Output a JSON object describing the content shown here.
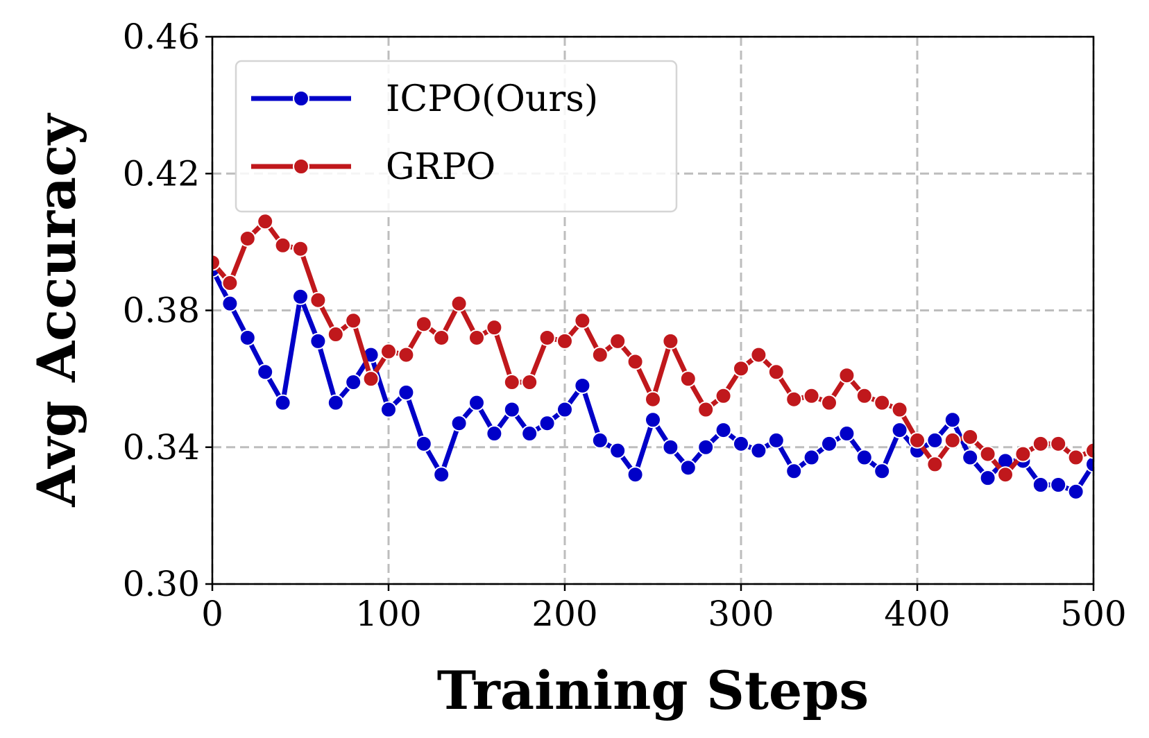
{
  "chart_data": {
    "type": "line",
    "xlabel": "Training Steps",
    "ylabel": "Avg Accuracy",
    "xlim": [
      0,
      500
    ],
    "ylim": [
      0.3,
      0.46
    ],
    "xticks": [
      0,
      100,
      200,
      300,
      400,
      500
    ],
    "xtick_labels": [
      "0",
      "100",
      "200",
      "300",
      "400",
      "500"
    ],
    "yticks": [
      0.3,
      0.34,
      0.38,
      0.42,
      0.46
    ],
    "ytick_labels": [
      "0.30",
      "0.34",
      "0.38",
      "0.42",
      "0.46"
    ],
    "grid": true,
    "legend_position": "top-left",
    "x": [
      0,
      10,
      20,
      30,
      40,
      50,
      60,
      70,
      80,
      90,
      100,
      110,
      120,
      130,
      140,
      150,
      160,
      170,
      180,
      190,
      200,
      210,
      220,
      230,
      240,
      250,
      260,
      270,
      280,
      290,
      300,
      310,
      320,
      330,
      340,
      350,
      360,
      370,
      380,
      390,
      400,
      410,
      420,
      430,
      440,
      450,
      460,
      470,
      480,
      490,
      500
    ],
    "series": [
      {
        "name": "ICPO(Ours)",
        "color": "#0000c8",
        "values": [
          0.392,
          0.382,
          0.372,
          0.362,
          0.353,
          0.384,
          0.371,
          0.353,
          0.359,
          0.367,
          0.351,
          0.356,
          0.341,
          0.332,
          0.347,
          0.353,
          0.344,
          0.351,
          0.344,
          0.347,
          0.351,
          0.358,
          0.342,
          0.339,
          0.332,
          0.348,
          0.34,
          0.334,
          0.34,
          0.345,
          0.341,
          0.339,
          0.342,
          0.333,
          0.337,
          0.341,
          0.344,
          0.337,
          0.333,
          0.345,
          0.339,
          0.342,
          0.348,
          0.337,
          0.331,
          0.336,
          0.336,
          0.329,
          0.329,
          0.327,
          0.335
        ]
      },
      {
        "name": "GRPO",
        "color": "#c0181c",
        "values": [
          0.394,
          0.388,
          0.401,
          0.406,
          0.399,
          0.398,
          0.383,
          0.373,
          0.377,
          0.36,
          0.368,
          0.367,
          0.376,
          0.372,
          0.382,
          0.372,
          0.375,
          0.359,
          0.359,
          0.372,
          0.371,
          0.377,
          0.367,
          0.371,
          0.365,
          0.354,
          0.371,
          0.36,
          0.351,
          0.355,
          0.363,
          0.367,
          0.362,
          0.354,
          0.355,
          0.353,
          0.361,
          0.355,
          0.353,
          0.351,
          0.342,
          0.335,
          0.342,
          0.343,
          0.338,
          0.332,
          0.338,
          0.341,
          0.341,
          0.337,
          0.339
        ]
      }
    ]
  }
}
